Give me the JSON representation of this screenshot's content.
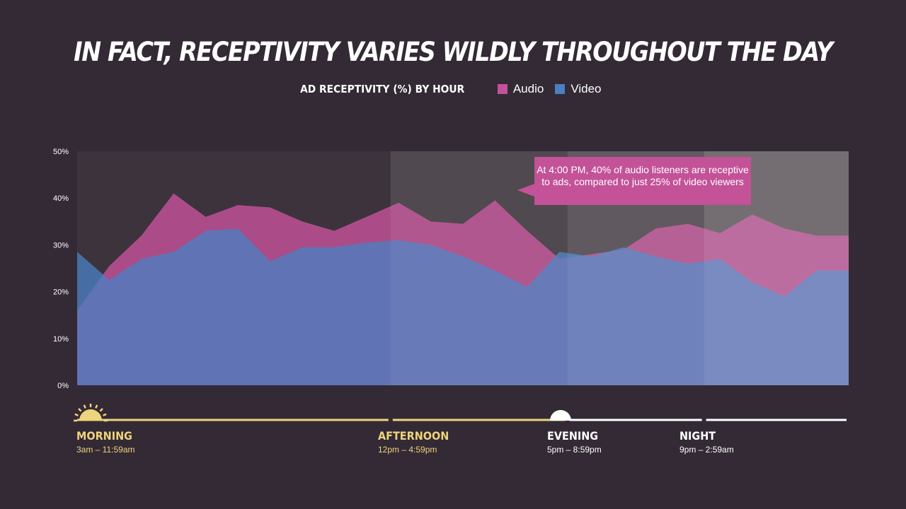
{
  "title": "IN FACT, RECEPTIVITY VARIES WILDLY THROUGHOUT THE DAY",
  "subtitle": "AD RECEPTIVITY (%) BY HOUR",
  "legend": [
    {
      "name": "Audio",
      "color": "#c35298"
    },
    {
      "name": "Video",
      "color": "#4a7fc1"
    }
  ],
  "callout": "At 4:00 PM, 40% of audio listeners are receptive to ads, compared to just 25% of video viewers",
  "periods": [
    {
      "name": "MORNING",
      "range": "3am – 11:59am",
      "color": "#eed47c",
      "icon": "sun-icon"
    },
    {
      "name": "AFTERNOON",
      "range": "12pm – 4:59pm",
      "color": "#eed47c",
      "icon": ""
    },
    {
      "name": "EVENING",
      "range": "5pm – 8:59pm",
      "color": "#ffffff",
      "icon": "moon-icon"
    },
    {
      "name": "NIGHT",
      "range": "9pm – 2:59am",
      "color": "#ffffff",
      "icon": ""
    }
  ],
  "chart_data": {
    "type": "area",
    "title": "AD RECEPTIVITY (%) BY HOUR",
    "xlabel": "",
    "ylabel": "",
    "ylim": [
      0,
      50
    ],
    "yticks": [
      0,
      10,
      20,
      30,
      40,
      50
    ],
    "ytick_labels": [
      "0%",
      "10%",
      "20%",
      "30%",
      "40%",
      "50%"
    ],
    "x": [
      0,
      1,
      2,
      3,
      4,
      5,
      6,
      7,
      8,
      9,
      10,
      11,
      12,
      13,
      14,
      15,
      16,
      17,
      18,
      19,
      20,
      21,
      22,
      23,
      24
    ],
    "series": [
      {
        "name": "Audio",
        "color": "#c35298",
        "values": [
          16,
          25.5,
          32,
          41,
          36,
          38.5,
          38,
          35,
          33,
          36,
          39,
          35,
          34.5,
          39.5,
          33,
          27,
          28,
          29,
          33.5,
          34.5,
          32.5,
          36.5,
          33.5,
          32,
          32
        ]
      },
      {
        "name": "Video",
        "color": "#4a7fc1",
        "values": [
          28.5,
          22.5,
          27,
          28.5,
          33,
          33.5,
          26.5,
          29.5,
          29.5,
          30.5,
          31,
          30,
          27.5,
          24.5,
          21,
          28.5,
          27.5,
          29.5,
          27.5,
          26,
          27,
          22,
          19,
          24.5,
          24.5
        ]
      }
    ],
    "period_boundaries": [
      0,
      9.75,
      15.25,
      19.5,
      24
    ],
    "annotation": {
      "x": 14,
      "text": "At 4:00 PM, 40% of audio listeners are receptive to ads, compared to just 25% of video viewers"
    }
  }
}
